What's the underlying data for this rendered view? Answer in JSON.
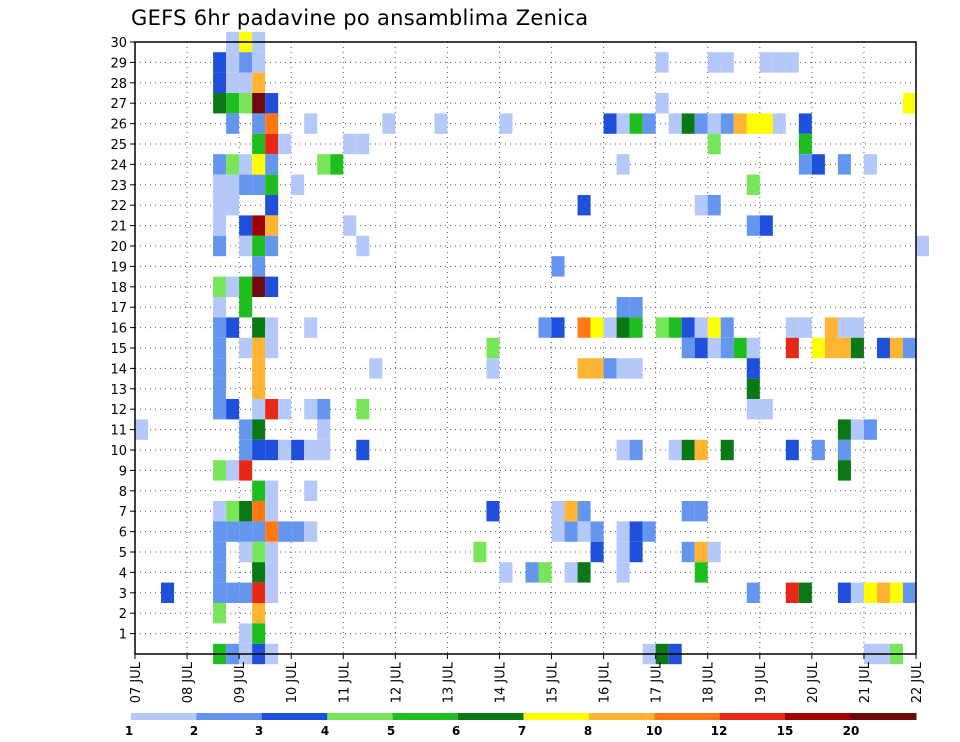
{
  "chart_data": {
    "type": "heatmap",
    "title": "GEFS 6hr padavine po ansamblima Zenica",
    "xlabel": "",
    "ylabel": "",
    "x_unit": "6-hour steps from 07 JUL 00Z",
    "x_ticks": [
      "07 JUL",
      "08 JUL",
      "09 JUL",
      "10 JUL",
      "11 JUL",
      "12 JUL",
      "13 JUL",
      "14 JUL",
      "15 JUL",
      "16 JUL",
      "17 JUL",
      "18 JUL",
      "19 JUL",
      "20 JUL",
      "21 JUL",
      "22 JUL"
    ],
    "y_ticks": [
      1,
      2,
      3,
      4,
      5,
      6,
      7,
      8,
      9,
      10,
      11,
      12,
      13,
      14,
      15,
      16,
      17,
      18,
      19,
      20,
      21,
      22,
      23,
      24,
      25,
      26,
      27,
      28,
      29,
      30
    ],
    "ylim": [
      0,
      30
    ],
    "grid": true,
    "colorbar": {
      "labels": [
        "1",
        "2",
        "3",
        "4",
        "5",
        "6",
        "7",
        "8",
        "10",
        "12",
        "15",
        "20"
      ],
      "colors": [
        "#b4c8fa",
        "#6496f0",
        "#1e50dc",
        "#78e65a",
        "#1ebe1e",
        "#0a7814",
        "#ffff00",
        "#ffb432",
        "#ff7814",
        "#e62814",
        "#a00000",
        "#6e0a0a"
      ]
    },
    "colors": [
      "#b4c8fa",
      "#6496f0",
      "#1e50dc",
      "#78e65a",
      "#1ebe1e",
      "#0a7814",
      "#ffff00",
      "#ffb432",
      "#ff7814",
      "#e62814",
      "#a00000",
      "#6e0a0a"
    ],
    "series": [
      {
        "member": 30,
        "cells": [
          [
            7,
            1
          ],
          [
            8,
            7
          ],
          [
            9,
            1
          ]
        ]
      },
      {
        "member": 29,
        "cells": [
          [
            6,
            3
          ],
          [
            7,
            1
          ],
          [
            8,
            2
          ],
          [
            9,
            1
          ],
          [
            40,
            1
          ],
          [
            44,
            1
          ],
          [
            45,
            1
          ],
          [
            48,
            1
          ],
          [
            49,
            1
          ],
          [
            50,
            1
          ]
        ]
      },
      {
        "member": 28,
        "cells": [
          [
            6,
            3
          ],
          [
            7,
            1
          ],
          [
            8,
            1
          ],
          [
            9,
            8
          ]
        ]
      },
      {
        "member": 27,
        "cells": [
          [
            6,
            6
          ],
          [
            7,
            5
          ],
          [
            8,
            4
          ],
          [
            9,
            12
          ],
          [
            10,
            3
          ],
          [
            40,
            1
          ],
          [
            59,
            7
          ]
        ]
      },
      {
        "member": 26,
        "cells": [
          [
            7,
            2
          ],
          [
            9,
            2
          ],
          [
            10,
            9
          ],
          [
            13,
            1
          ],
          [
            19,
            1
          ],
          [
            23,
            1
          ],
          [
            28,
            1
          ],
          [
            36,
            3
          ],
          [
            37,
            1
          ],
          [
            38,
            5
          ],
          [
            39,
            2
          ],
          [
            41,
            1
          ],
          [
            42,
            6
          ],
          [
            43,
            2
          ],
          [
            44,
            1
          ],
          [
            45,
            2
          ],
          [
            46,
            8
          ],
          [
            47,
            7
          ],
          [
            48,
            7
          ],
          [
            49,
            1
          ],
          [
            51,
            3
          ]
        ]
      },
      {
        "member": 25,
        "cells": [
          [
            9,
            5
          ],
          [
            10,
            10
          ],
          [
            11,
            1
          ],
          [
            16,
            1
          ],
          [
            17,
            1
          ],
          [
            44,
            4
          ],
          [
            51,
            5
          ]
        ]
      },
      {
        "member": 24,
        "cells": [
          [
            6,
            2
          ],
          [
            7,
            4
          ],
          [
            8,
            1
          ],
          [
            9,
            7
          ],
          [
            10,
            2
          ],
          [
            14,
            4
          ],
          [
            15,
            5
          ],
          [
            37,
            1
          ],
          [
            51,
            2
          ],
          [
            52,
            3
          ],
          [
            54,
            2
          ],
          [
            56,
            1
          ]
        ]
      },
      {
        "member": 23,
        "cells": [
          [
            6,
            1
          ],
          [
            7,
            1
          ],
          [
            8,
            2
          ],
          [
            9,
            2
          ],
          [
            10,
            5
          ],
          [
            12,
            1
          ],
          [
            47,
            4
          ]
        ]
      },
      {
        "member": 22,
        "cells": [
          [
            6,
            1
          ],
          [
            7,
            1
          ],
          [
            10,
            3
          ],
          [
            34,
            3
          ],
          [
            43,
            1
          ],
          [
            44,
            2
          ]
        ]
      },
      {
        "member": 21,
        "cells": [
          [
            6,
            1
          ],
          [
            8,
            3
          ],
          [
            9,
            11
          ],
          [
            10,
            8
          ],
          [
            16,
            1
          ],
          [
            47,
            2
          ],
          [
            48,
            3
          ]
        ]
      },
      {
        "member": 20,
        "cells": [
          [
            6,
            2
          ],
          [
            8,
            1
          ],
          [
            9,
            5
          ],
          [
            10,
            2
          ],
          [
            17,
            1
          ],
          [
            60,
            1
          ]
        ]
      },
      {
        "member": 19,
        "cells": [
          [
            9,
            2
          ],
          [
            32,
            2
          ]
        ]
      },
      {
        "member": 18,
        "cells": [
          [
            6,
            4
          ],
          [
            7,
            1
          ],
          [
            8,
            5
          ],
          [
            9,
            12
          ],
          [
            10,
            3
          ]
        ]
      },
      {
        "member": 17,
        "cells": [
          [
            6,
            1
          ],
          [
            8,
            5
          ],
          [
            37,
            2
          ],
          [
            38,
            2
          ]
        ]
      },
      {
        "member": 16,
        "cells": [
          [
            6,
            2
          ],
          [
            7,
            3
          ],
          [
            9,
            6
          ],
          [
            10,
            1
          ],
          [
            13,
            1
          ],
          [
            31,
            2
          ],
          [
            32,
            3
          ],
          [
            34,
            9
          ],
          [
            35,
            7
          ],
          [
            36,
            1
          ],
          [
            37,
            6
          ],
          [
            38,
            5
          ],
          [
            40,
            4
          ],
          [
            41,
            5
          ],
          [
            42,
            3
          ],
          [
            43,
            1
          ],
          [
            44,
            7
          ],
          [
            45,
            2
          ],
          [
            50,
            1
          ],
          [
            51,
            1
          ],
          [
            53,
            8
          ],
          [
            54,
            1
          ],
          [
            55,
            1
          ]
        ]
      },
      {
        "member": 15,
        "cells": [
          [
            6,
            2
          ],
          [
            8,
            1
          ],
          [
            9,
            8
          ],
          [
            10,
            1
          ],
          [
            27,
            4
          ],
          [
            42,
            2
          ],
          [
            43,
            3
          ],
          [
            44,
            1
          ],
          [
            45,
            2
          ],
          [
            46,
            5
          ],
          [
            47,
            1
          ],
          [
            50,
            10
          ],
          [
            52,
            7
          ],
          [
            53,
            8
          ],
          [
            54,
            8
          ],
          [
            55,
            6
          ],
          [
            57,
            3
          ],
          [
            58,
            8
          ],
          [
            59,
            2
          ]
        ]
      },
      {
        "member": 14,
        "cells": [
          [
            6,
            2
          ],
          [
            9,
            8
          ],
          [
            18,
            1
          ],
          [
            27,
            1
          ],
          [
            34,
            8
          ],
          [
            35,
            8
          ],
          [
            36,
            2
          ],
          [
            37,
            1
          ],
          [
            38,
            1
          ],
          [
            47,
            3
          ]
        ]
      },
      {
        "member": 13,
        "cells": [
          [
            6,
            2
          ],
          [
            9,
            8
          ],
          [
            47,
            6
          ]
        ]
      },
      {
        "member": 12,
        "cells": [
          [
            6,
            2
          ],
          [
            7,
            3
          ],
          [
            9,
            1
          ],
          [
            10,
            10
          ],
          [
            11,
            1
          ],
          [
            13,
            1
          ],
          [
            14,
            2
          ],
          [
            17,
            4
          ],
          [
            47,
            1
          ],
          [
            48,
            1
          ]
        ]
      },
      {
        "member": 11,
        "cells": [
          [
            0,
            1
          ],
          [
            8,
            2
          ],
          [
            9,
            6
          ],
          [
            14,
            1
          ],
          [
            54,
            6
          ],
          [
            55,
            1
          ],
          [
            56,
            2
          ]
        ]
      },
      {
        "member": 10,
        "cells": [
          [
            8,
            2
          ],
          [
            9,
            3
          ],
          [
            10,
            3
          ],
          [
            11,
            1
          ],
          [
            12,
            3
          ],
          [
            13,
            1
          ],
          [
            14,
            1
          ],
          [
            17,
            3
          ],
          [
            37,
            1
          ],
          [
            38,
            2
          ],
          [
            41,
            1
          ],
          [
            42,
            6
          ],
          [
            43,
            8
          ],
          [
            45,
            6
          ],
          [
            50,
            3
          ],
          [
            52,
            2
          ],
          [
            54,
            2
          ]
        ]
      },
      {
        "member": 9,
        "cells": [
          [
            6,
            4
          ],
          [
            7,
            1
          ],
          [
            8,
            10
          ],
          [
            54,
            6
          ]
        ]
      },
      {
        "member": 8,
        "cells": [
          [
            9,
            5
          ],
          [
            10,
            1
          ],
          [
            13,
            1
          ]
        ]
      },
      {
        "member": 7,
        "cells": [
          [
            6,
            1
          ],
          [
            7,
            4
          ],
          [
            8,
            6
          ],
          [
            9,
            9
          ],
          [
            10,
            1
          ],
          [
            27,
            3
          ],
          [
            32,
            1
          ],
          [
            33,
            8
          ],
          [
            34,
            2
          ],
          [
            42,
            2
          ],
          [
            43,
            2
          ]
        ]
      },
      {
        "member": 6,
        "cells": [
          [
            6,
            2
          ],
          [
            7,
            2
          ],
          [
            8,
            2
          ],
          [
            9,
            2
          ],
          [
            10,
            9
          ],
          [
            11,
            2
          ],
          [
            12,
            2
          ],
          [
            13,
            1
          ],
          [
            32,
            1
          ],
          [
            33,
            2
          ],
          [
            34,
            1
          ],
          [
            35,
            2
          ],
          [
            37,
            1
          ],
          [
            38,
            3
          ],
          [
            39,
            2
          ]
        ]
      },
      {
        "member": 5,
        "cells": [
          [
            6,
            2
          ],
          [
            8,
            1
          ],
          [
            9,
            4
          ],
          [
            10,
            1
          ],
          [
            26,
            4
          ],
          [
            35,
            3
          ],
          [
            37,
            1
          ],
          [
            38,
            3
          ],
          [
            42,
            2
          ],
          [
            43,
            8
          ],
          [
            44,
            1
          ]
        ]
      },
      {
        "member": 4,
        "cells": [
          [
            6,
            2
          ],
          [
            9,
            6
          ],
          [
            10,
            1
          ],
          [
            28,
            1
          ],
          [
            30,
            2
          ],
          [
            31,
            4
          ],
          [
            33,
            1
          ],
          [
            34,
            6
          ],
          [
            37,
            1
          ],
          [
            43,
            5
          ]
        ]
      },
      {
        "member": 3,
        "cells": [
          [
            2,
            3
          ],
          [
            6,
            2
          ],
          [
            7,
            2
          ],
          [
            8,
            2
          ],
          [
            9,
            10
          ],
          [
            10,
            1
          ],
          [
            47,
            2
          ],
          [
            50,
            10
          ],
          [
            51,
            6
          ],
          [
            54,
            3
          ],
          [
            55,
            1
          ],
          [
            56,
            7
          ],
          [
            57,
            8
          ],
          [
            58,
            7
          ],
          [
            59,
            2
          ]
        ]
      },
      {
        "member": 2,
        "cells": [
          [
            6,
            4
          ],
          [
            9,
            8
          ]
        ]
      },
      {
        "member": 1,
        "cells": [
          [
            8,
            1
          ],
          [
            9,
            5
          ]
        ]
      },
      {
        "member": 0,
        "cells": [
          [
            6,
            5
          ],
          [
            7,
            2
          ],
          [
            8,
            1
          ],
          [
            9,
            3
          ],
          [
            10,
            1
          ],
          [
            39,
            1
          ],
          [
            40,
            6
          ],
          [
            41,
            3
          ],
          [
            56,
            1
          ],
          [
            57,
            1
          ],
          [
            58,
            4
          ]
        ]
      }
    ]
  }
}
